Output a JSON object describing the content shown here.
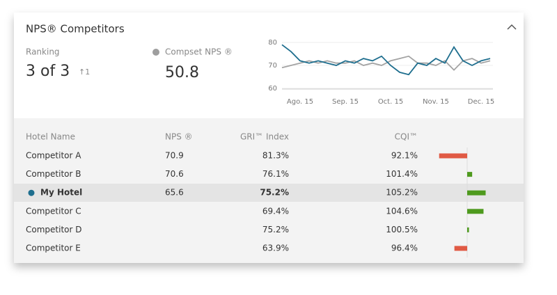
{
  "header": {
    "title": "NPS® Competitors"
  },
  "ranking": {
    "label": "Ranking",
    "value": "3 of 3",
    "change": "↑1"
  },
  "compset": {
    "label": "Compset NPS ®",
    "value": "50.8",
    "color": "#9e9e9e"
  },
  "chart_data": {
    "type": "line",
    "categories": [
      null,
      null,
      "Ago. 15",
      null,
      null,
      null,
      null,
      "Sep. 15",
      null,
      null,
      null,
      null,
      "Oct. 15",
      null,
      null,
      null,
      null,
      "Nov. 15",
      null,
      null,
      null,
      null,
      "Dec. 15",
      null
    ],
    "series": [
      {
        "color": "#1e6e8e",
        "values": [
          79,
          76,
          72,
          71,
          72,
          71,
          70,
          72,
          71,
          73,
          72,
          74,
          70,
          67,
          66,
          71,
          70,
          73,
          71,
          78,
          72,
          70,
          72,
          73
        ]
      },
      {
        "color": "#a3a3a3",
        "values": [
          69,
          70,
          71,
          72,
          71,
          72,
          71,
          71,
          72,
          70,
          71,
          70,
          72,
          73,
          74,
          71,
          71,
          70,
          72,
          68,
          72,
          73,
          71,
          72
        ]
      }
    ],
    "ylim": [
      60,
      80
    ],
    "yticks": [
      60,
      70,
      80
    ],
    "grid": true
  },
  "table": {
    "columns": [
      "Hotel Name",
      "NPS ®",
      "GRI™ Index",
      "CQI™"
    ],
    "cqi_baseline": 100,
    "cqi_lim": [
      90,
      110
    ],
    "below_color": "#e05a44",
    "above_color": "#4e9a1e",
    "highlight_color": "#1e6e8e",
    "rows": [
      {
        "name": "Competitor A",
        "nps": "70.9",
        "gri": "81.3%",
        "cqi": 92.1,
        "cqi_label": "92.1%"
      },
      {
        "name": "Competitor B",
        "nps": "70.6",
        "gri": "76.1%",
        "cqi": 101.4,
        "cqi_label": "101.4%"
      },
      {
        "name": "My Hotel",
        "nps": "65.6",
        "gri": "75.2%",
        "cqi": 105.2,
        "cqi_label": "105.2%",
        "highlight": true
      },
      {
        "name": "Competitor C",
        "gri": "69.4%",
        "cqi": 104.6,
        "cqi_label": "104.6%"
      },
      {
        "name": "Competitor D",
        "gri": "75.2%",
        "cqi": 100.5,
        "cqi_label": "100.5%"
      },
      {
        "name": "Competitor E",
        "gri": "63.9%",
        "cqi": 96.4,
        "cqi_label": "96.4%"
      }
    ]
  }
}
